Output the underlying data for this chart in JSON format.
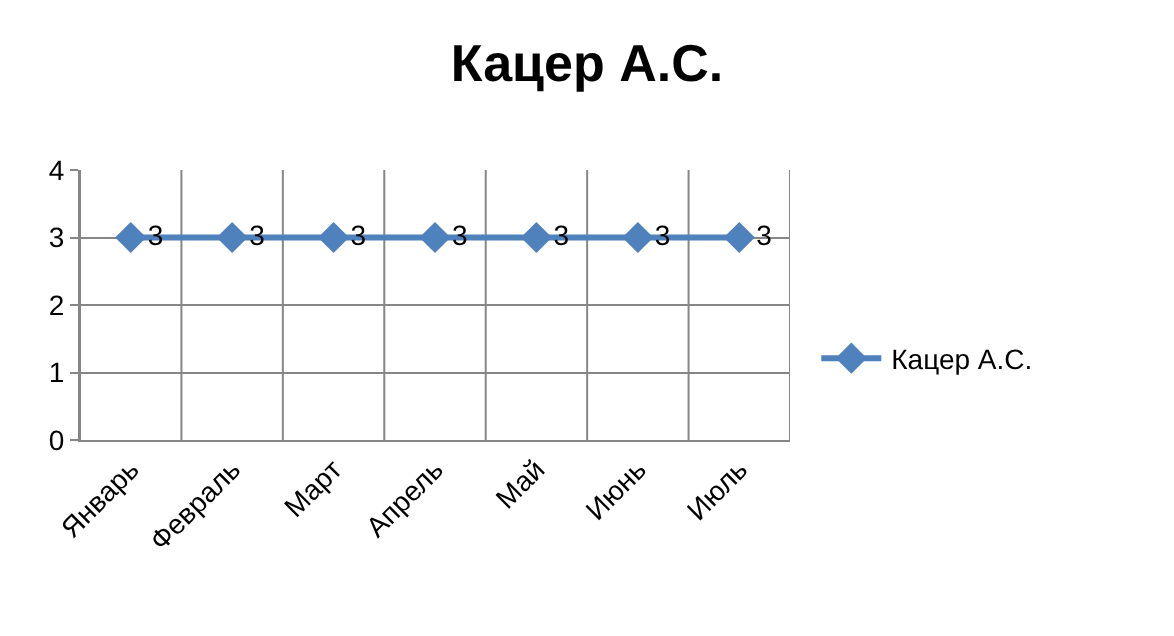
{
  "chart_data": {
    "type": "line",
    "title": "Кацер А.С.",
    "categories": [
      "Январь",
      "Февраль",
      "Март",
      "Апрель",
      "Май",
      "Июнь",
      "Июль"
    ],
    "series": [
      {
        "name": "Кацер А.С.",
        "color": "#4f81bd",
        "values": [
          3,
          3,
          3,
          3,
          3,
          3,
          3
        ]
      }
    ],
    "ylim": [
      0,
      4
    ],
    "yticks": [
      0,
      1,
      2,
      3,
      4
    ],
    "grid": true,
    "legend": "right",
    "marker": "diamond",
    "line_style": "solid",
    "data_labels": true
  }
}
